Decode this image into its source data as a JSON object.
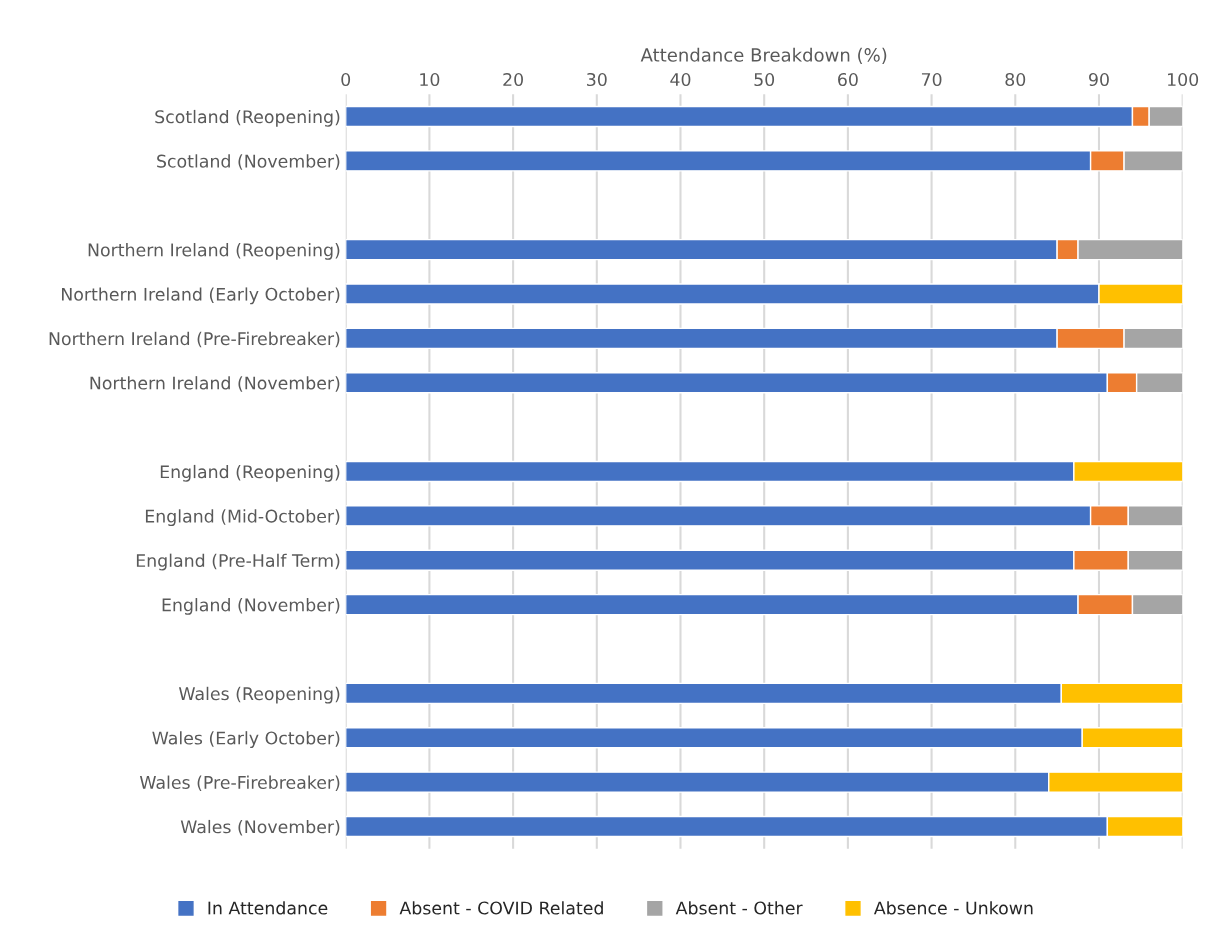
{
  "chart_data": {
    "type": "bar",
    "orientation": "horizontal",
    "stacked": true,
    "xlabel": "Attendance Breakdown (%)",
    "categories": [
      "Scotland (Reopening)",
      "Scotland (November)",
      null,
      "Northern Ireland (Reopening)",
      "Northern Ireland (Early October)",
      "Northern Ireland (Pre-Firebreaker)",
      "Northern Ireland (November)",
      null,
      "England (Reopening)",
      "England (Mid-October)",
      "England (Pre-Half Term)",
      "England (November)",
      null,
      "Wales (Reopening)",
      "Wales (Early October)",
      "Wales (Pre-Firebreaker)",
      "Wales (November)"
    ],
    "series": [
      {
        "name": "In Attendance",
        "color": "#4472c4",
        "values": [
          94,
          89,
          null,
          85,
          90,
          85,
          91,
          null,
          87,
          89,
          87,
          87.5,
          null,
          85.5,
          88,
          84,
          91
        ]
      },
      {
        "name": "Absent - COVID Related",
        "color": "#ed7d31",
        "values": [
          2,
          4,
          null,
          2.5,
          null,
          8,
          3.5,
          null,
          null,
          4.5,
          6.5,
          6.5,
          null,
          null,
          null,
          null,
          null
        ]
      },
      {
        "name": "Absent - Other",
        "color": "#a5a5a5",
        "values": [
          4,
          7,
          null,
          12.5,
          null,
          7,
          5.5,
          null,
          null,
          6.5,
          6.5,
          6,
          null,
          null,
          null,
          null,
          null
        ]
      },
      {
        "name": "Absence - Unkown",
        "color": "#ffc000",
        "values": [
          null,
          null,
          null,
          null,
          10,
          null,
          null,
          null,
          13,
          null,
          null,
          null,
          null,
          14.5,
          12,
          16,
          9
        ]
      }
    ],
    "xlim": [
      0,
      100
    ],
    "xticks": [
      0,
      10,
      20,
      30,
      40,
      50,
      60,
      70,
      80,
      90,
      100
    ],
    "grid": "x",
    "legend": "bottom"
  }
}
